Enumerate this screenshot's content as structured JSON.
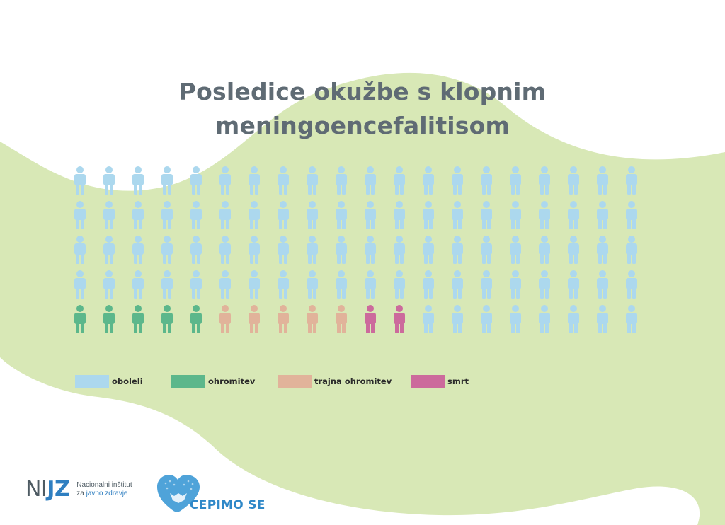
{
  "chart_data": {
    "type": "pictogram",
    "title_lines": [
      "Posledice okužbe s klopnim",
      "meningoencefalitisom"
    ],
    "rows": 5,
    "columns": 20,
    "total_icons": 100,
    "fill_order": "last row, left to right; remaining icons are oboleli",
    "series": [
      {
        "name": "oboleli",
        "count": 88,
        "color": "#acd8ee"
      },
      {
        "name": "ohromitev",
        "count": 5,
        "color": "#5cb78b"
      },
      {
        "name": "trajna ohromitev",
        "count": 5,
        "color": "#e1b39a"
      },
      {
        "name": "smrt",
        "count": 2,
        "color": "#cc6a9c"
      }
    ],
    "legend_position": "bottom"
  },
  "logos": {
    "nijz_mark_1": "NI",
    "nijz_mark_2": "JZ",
    "nijz_line1": "Nacionalni inštitut",
    "nijz_line2_prefix": "za ",
    "nijz_line2_em": "javno zdravje",
    "cepimo": "CEPIMO SE"
  },
  "colors": {
    "background_blob": "#d8e8b6",
    "title": "#5f6b74"
  }
}
